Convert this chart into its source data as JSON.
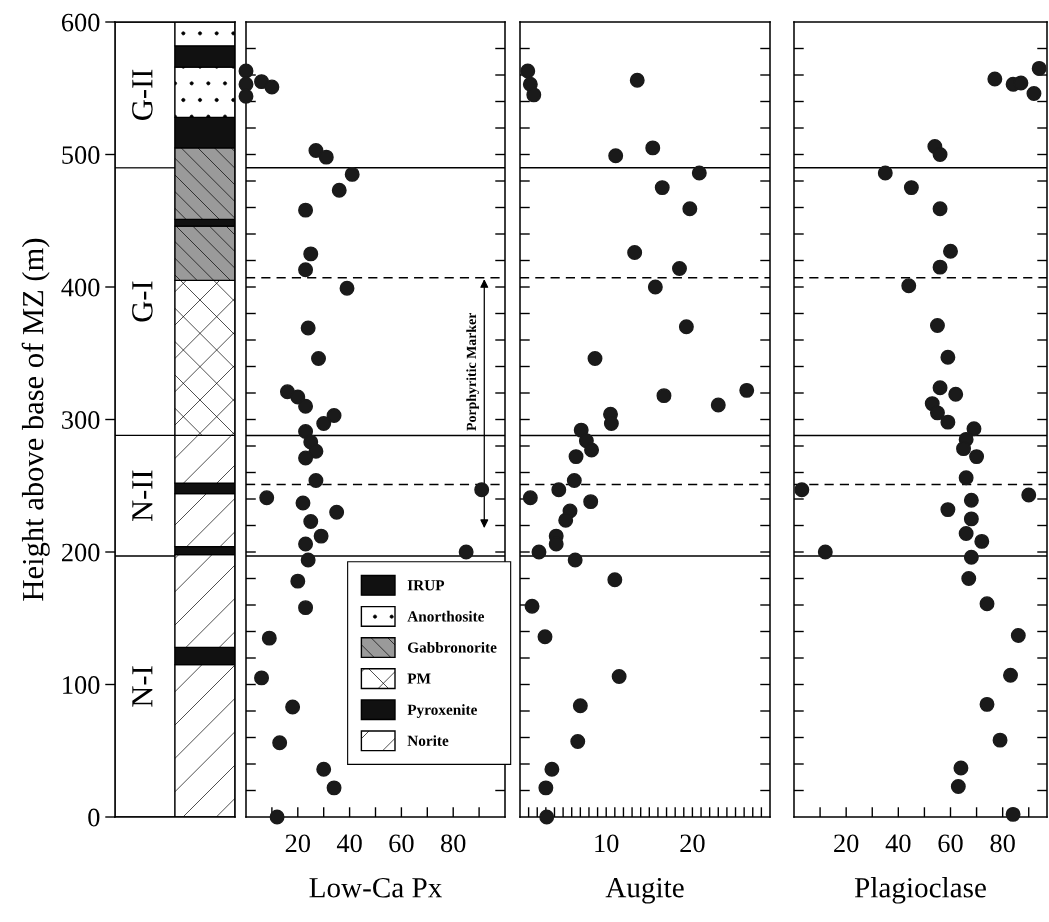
{
  "chart_data": [
    {
      "type": "bar",
      "stacked": true,
      "categories": [
        null,
        null
      ],
      "ylabel": "Height above base of MZ (m)",
      "ylim": [
        0,
        600
      ],
      "yticks": [
        0,
        100,
        200,
        300,
        400,
        500,
        600
      ],
      "tick_labels": "y",
      "legend": "right",
      "series": [
        {
          "name": "N-I",
          "color": "#ffffff",
          "values": [
            197,
            null
          ]
        },
        {
          "name": "N-II",
          "color": "#ffffff",
          "values": [
            91,
            null
          ]
        },
        {
          "name": "G-I",
          "color": "#ffffff",
          "values": [
            202,
            null
          ]
        },
        {
          "name": "G-II",
          "color": "#ffffff",
          "values": [
            110,
            null
          ]
        },
        {
          "name": "Norite",
          "color": "#ffffff",
          "values": [
            null,
            115
          ]
        },
        {
          "color": "#111111",
          "values": [
            null,
            13
          ]
        },
        {
          "color": "#ffffff",
          "values": [
            null,
            70
          ]
        },
        {
          "name": "Pyroxenite",
          "color": "#111111",
          "values": [
            null,
            6
          ]
        },
        {
          "color": "#ffffff",
          "values": [
            null,
            40
          ]
        },
        {
          "color": "#111111",
          "values": [
            null,
            8
          ]
        },
        {
          "color": "#ffffff",
          "values": [
            null,
            36
          ]
        },
        {
          "name": "PM",
          "color": "#ffffff",
          "values": [
            null,
            117
          ]
        },
        {
          "name": "Gabbronorite",
          "color": "#9a9a9a",
          "values": [
            null,
            41
          ]
        },
        {
          "color": "#111111",
          "values": [
            null,
            5
          ]
        },
        {
          "color": "#9a9a9a",
          "values": [
            null,
            54
          ]
        },
        {
          "color": "#111111",
          "values": [
            null,
            23
          ]
        },
        {
          "name": "Anorthosite",
          "color": "#ffffff",
          "values": [
            null,
            38
          ]
        },
        {
          "name": "IRUP",
          "color": "#111111",
          "values": [
            null,
            16
          ]
        },
        {
          "color": "#ffffff",
          "values": [
            null,
            18
          ]
        }
      ]
    },
    {
      "type": "scatter",
      "xlabel": "Low-Ca Px",
      "xlim": [
        0,
        100
      ],
      "ylim": [
        0,
        600
      ],
      "marker": "circle",
      "tick_labels": "x",
      "xticks": [
        {
          "value": 10,
          "label": null
        },
        20,
        {
          "value": 30,
          "label": null
        },
        40,
        {
          "value": 50,
          "label": null
        },
        60,
        {
          "value": 70,
          "label": null
        },
        80,
        {
          "value": 90,
          "label": null
        }
      ],
      "yticks": [
        {
          "value": 20,
          "label": null
        },
        {
          "value": 40,
          "label": null
        },
        {
          "value": 60,
          "label": null
        },
        {
          "value": 80,
          "label": null
        },
        {
          "value": 100,
          "label": null
        },
        {
          "value": 120,
          "label": null
        },
        {
          "value": 140,
          "label": null
        },
        {
          "value": 160,
          "label": null
        },
        {
          "value": 180,
          "label": null
        },
        {
          "value": 200,
          "label": null
        },
        {
          "value": 220,
          "label": null
        },
        {
          "value": 240,
          "label": null
        },
        {
          "value": 260,
          "label": null
        },
        {
          "value": 280,
          "label": null
        },
        {
          "value": 300,
          "label": null
        },
        {
          "value": 320,
          "label": null
        },
        {
          "value": 340,
          "label": null
        },
        {
          "value": 360,
          "label": null
        },
        {
          "value": 380,
          "label": null
        },
        {
          "value": 400,
          "label": null
        },
        {
          "value": 420,
          "label": null
        },
        {
          "value": 440,
          "label": null
        },
        {
          "value": 460,
          "label": null
        },
        {
          "value": 480,
          "label": null
        },
        {
          "value": 500,
          "label": null
        },
        {
          "value": 520,
          "label": null
        },
        {
          "value": 540,
          "label": null
        },
        {
          "value": 560,
          "label": null
        },
        {
          "value": 580,
          "label": null
        }
      ],
      "ref_lines": [
        {
          "axis": "y",
          "value": 490,
          "line_style": "solid"
        },
        {
          "axis": "y",
          "value": 407,
          "line_style": "dashed"
        },
        {
          "axis": "y",
          "value": 288,
          "line_style": "solid"
        },
        {
          "axis": "y",
          "value": 251,
          "line_style": "dashed"
        },
        {
          "axis": "y",
          "value": 197,
          "line_style": "solid"
        }
      ],
      "annotations": [
        "Porphyritic Marker"
      ],
      "series": [
        {
          "color": "#1a1a1a",
          "x": [
            0,
            0,
            0,
            6,
            10,
            27,
            31,
            41,
            36,
            23,
            25,
            23,
            39,
            24,
            28,
            16,
            20,
            23,
            34,
            30,
            23,
            25,
            27,
            23,
            27,
            8,
            22,
            35,
            25,
            29,
            23,
            91,
            85,
            24,
            20,
            23,
            9,
            6,
            18,
            13,
            30,
            34,
            12
          ],
          "values": [
            563,
            553,
            544,
            555,
            551,
            503,
            498,
            485,
            473,
            458,
            425,
            413,
            399,
            369,
            346,
            321,
            317,
            310,
            303,
            297,
            291,
            283,
            276,
            271,
            254,
            241,
            237,
            230,
            223,
            212,
            206,
            247,
            200,
            194,
            178,
            158,
            135,
            105,
            83,
            56,
            36,
            22,
            0
          ]
        }
      ]
    },
    {
      "type": "scatter",
      "xlabel": "Augite",
      "xlim": [
        0,
        29
      ],
      "ylim": [
        0,
        600
      ],
      "marker": "circle",
      "tick_labels": "x",
      "xticks": [
        {
          "value": 1,
          "label": null
        },
        {
          "value": 2,
          "label": null
        },
        {
          "value": 3,
          "label": null
        },
        {
          "value": 4,
          "label": null
        },
        {
          "value": 5,
          "label": null
        },
        {
          "value": 6,
          "label": null
        },
        {
          "value": 7,
          "label": null
        },
        {
          "value": 8,
          "label": null
        },
        {
          "value": 9,
          "label": null
        },
        10,
        {
          "value": 11,
          "label": null
        },
        {
          "value": 12,
          "label": null
        },
        {
          "value": 13,
          "label": null
        },
        {
          "value": 14,
          "label": null
        },
        {
          "value": 15,
          "label": null
        },
        {
          "value": 16,
          "label": null
        },
        {
          "value": 17,
          "label": null
        },
        {
          "value": 18,
          "label": null
        },
        {
          "value": 19,
          "label": null
        },
        20,
        {
          "value": 21,
          "label": null
        },
        {
          "value": 22,
          "label": null
        },
        {
          "value": 23,
          "label": null
        },
        {
          "value": 24,
          "label": null
        },
        {
          "value": 25,
          "label": null
        },
        {
          "value": 26,
          "label": null
        },
        {
          "value": 27,
          "label": null
        },
        {
          "value": 28,
          "label": null
        }
      ],
      "yticks": [
        {
          "value": 20,
          "label": null
        },
        {
          "value": 40,
          "label": null
        },
        {
          "value": 60,
          "label": null
        },
        {
          "value": 80,
          "label": null
        },
        {
          "value": 100,
          "label": null
        },
        {
          "value": 120,
          "label": null
        },
        {
          "value": 140,
          "label": null
        },
        {
          "value": 160,
          "label": null
        },
        {
          "value": 180,
          "label": null
        },
        {
          "value": 200,
          "label": null
        },
        {
          "value": 220,
          "label": null
        },
        {
          "value": 240,
          "label": null
        },
        {
          "value": 260,
          "label": null
        },
        {
          "value": 280,
          "label": null
        },
        {
          "value": 300,
          "label": null
        },
        {
          "value": 320,
          "label": null
        },
        {
          "value": 340,
          "label": null
        },
        {
          "value": 360,
          "label": null
        },
        {
          "value": 380,
          "label": null
        },
        {
          "value": 400,
          "label": null
        },
        {
          "value": 420,
          "label": null
        },
        {
          "value": 440,
          "label": null
        },
        {
          "value": 460,
          "label": null
        },
        {
          "value": 480,
          "label": null
        },
        {
          "value": 500,
          "label": null
        },
        {
          "value": 520,
          "label": null
        },
        {
          "value": 540,
          "label": null
        },
        {
          "value": 560,
          "label": null
        },
        {
          "value": 580,
          "label": null
        }
      ],
      "ref_lines": [
        {
          "axis": "y",
          "value": 490,
          "line_style": "solid"
        },
        {
          "axis": "y",
          "value": 407,
          "line_style": "dashed"
        },
        {
          "axis": "y",
          "value": 288,
          "line_style": "solid"
        },
        {
          "axis": "y",
          "value": 251,
          "line_style": "dashed"
        },
        {
          "axis": "y",
          "value": 197,
          "line_style": "solid"
        }
      ],
      "series": [
        {
          "color": "#1a1a1a",
          "x": [
            0.9,
            1.2,
            1.6,
            13.6,
            11.1,
            15.4,
            20.8,
            16.5,
            19.7,
            13.3,
            18.5,
            15.7,
            19.3,
            8.7,
            16.7,
            23,
            26.3,
            10.5,
            10.6,
            7.1,
            7.7,
            8.3,
            6.5,
            6.3,
            4.5,
            1.2,
            8.2,
            5.8,
            5.3,
            4.2,
            4.2,
            2.2,
            6.4,
            11,
            1.4,
            2.9,
            11.5,
            7,
            6.7,
            3.7,
            3,
            3.1
          ],
          "values": [
            563,
            553,
            545,
            556,
            499,
            505,
            486,
            475,
            459,
            426,
            414,
            400,
            370,
            346,
            318,
            311,
            322,
            304,
            297,
            292,
            284,
            277,
            272,
            254,
            247,
            241,
            238,
            231,
            224,
            212,
            206,
            200,
            194,
            179,
            159,
            136,
            106,
            84,
            57,
            36,
            22,
            0
          ]
        }
      ]
    },
    {
      "type": "scatter",
      "xlabel": "Plagioclase",
      "xlim": [
        0,
        97
      ],
      "ylim": [
        0,
        600
      ],
      "marker": "circle",
      "tick_labels": "x",
      "xticks": [
        {
          "value": 10,
          "label": null
        },
        20,
        {
          "value": 30,
          "label": null
        },
        40,
        {
          "value": 50,
          "label": null
        },
        60,
        {
          "value": 70,
          "label": null
        },
        80,
        {
          "value": 90,
          "label": null
        }
      ],
      "yticks": [
        {
          "value": 20,
          "label": null
        },
        {
          "value": 40,
          "label": null
        },
        {
          "value": 60,
          "label": null
        },
        {
          "value": 80,
          "label": null
        },
        {
          "value": 100,
          "label": null
        },
        {
          "value": 120,
          "label": null
        },
        {
          "value": 140,
          "label": null
        },
        {
          "value": 160,
          "label": null
        },
        {
          "value": 180,
          "label": null
        },
        {
          "value": 200,
          "label": null
        },
        {
          "value": 220,
          "label": null
        },
        {
          "value": 240,
          "label": null
        },
        {
          "value": 260,
          "label": null
        },
        {
          "value": 280,
          "label": null
        },
        {
          "value": 300,
          "label": null
        },
        {
          "value": 320,
          "label": null
        },
        {
          "value": 340,
          "label": null
        },
        {
          "value": 360,
          "label": null
        },
        {
          "value": 380,
          "label": null
        },
        {
          "value": 400,
          "label": null
        },
        {
          "value": 420,
          "label": null
        },
        {
          "value": 440,
          "label": null
        },
        {
          "value": 460,
          "label": null
        },
        {
          "value": 480,
          "label": null
        },
        {
          "value": 500,
          "label": null
        },
        {
          "value": 520,
          "label": null
        },
        {
          "value": 540,
          "label": null
        },
        {
          "value": 560,
          "label": null
        },
        {
          "value": 580,
          "label": null
        }
      ],
      "ref_lines": [
        {
          "axis": "y",
          "value": 490,
          "line_style": "solid"
        },
        {
          "axis": "y",
          "value": 407,
          "line_style": "dashed"
        },
        {
          "axis": "y",
          "value": 288,
          "line_style": "solid"
        },
        {
          "axis": "y",
          "value": 251,
          "line_style": "dashed"
        },
        {
          "axis": "y",
          "value": 197,
          "line_style": "solid"
        }
      ],
      "series": [
        {
          "color": "#1a1a1a",
          "x": [
            77,
            84,
            87,
            92,
            94,
            54,
            56,
            35,
            45,
            56,
            60,
            56,
            44,
            55,
            59,
            56,
            62,
            53,
            55,
            59,
            69,
            66,
            65,
            70,
            66,
            3,
            90,
            68,
            59,
            68,
            66,
            72,
            12,
            68,
            67,
            74,
            86,
            83,
            74,
            79,
            64,
            63,
            84
          ],
          "values": [
            557,
            553,
            554,
            546,
            565,
            506,
            500,
            486,
            475,
            459,
            427,
            415,
            401,
            371,
            347,
            324,
            319,
            312,
            305,
            298,
            293,
            285,
            278,
            272,
            256,
            247,
            243,
            239,
            232,
            225,
            214,
            208,
            200,
            196,
            180,
            161,
            137,
            107,
            85,
            58,
            37,
            23,
            2
          ]
        }
      ]
    }
  ]
}
